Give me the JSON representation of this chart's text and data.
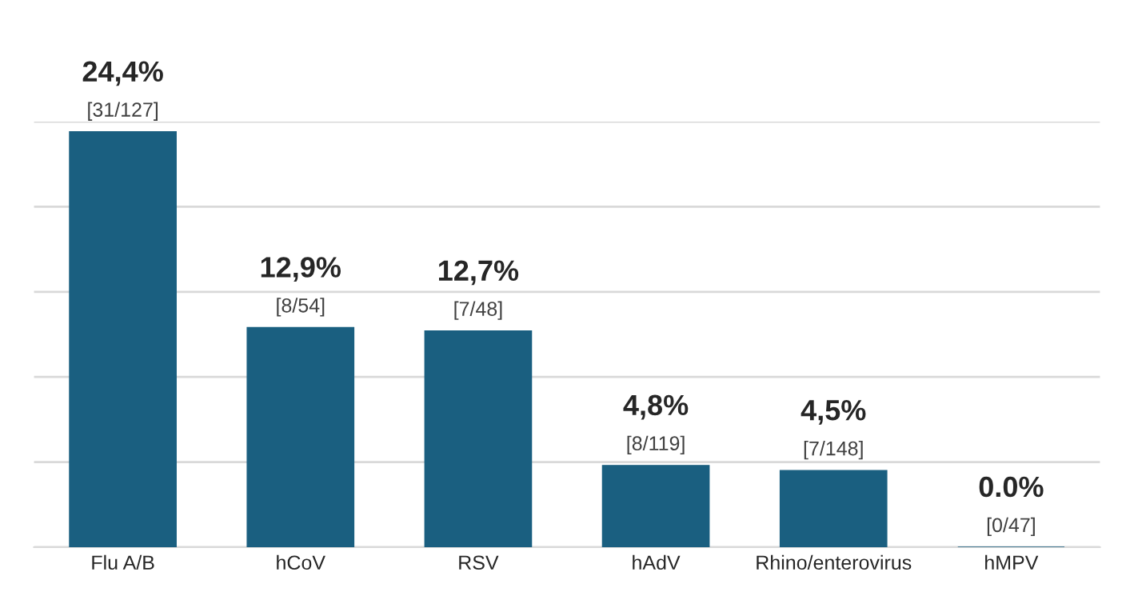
{
  "chart_data": {
    "type": "bar",
    "categories": [
      "Flu A/B",
      "hCoV",
      "RSV",
      "hAdV",
      "Rhino/enterovirus",
      "hMPV"
    ],
    "values": [
      24.4,
      12.9,
      12.7,
      4.8,
      4.5,
      0.0
    ],
    "color": "#1a5f80",
    "value_labels": [
      "24,4%",
      "12,9%",
      "12,7%",
      "4,8%",
      "4,5%",
      "0.0%"
    ],
    "annotations": [
      {
        "text": "[31/127]",
        "x": "Flu A/B",
        "y": 24.4
      },
      {
        "text": "[8/54]",
        "x": "hCoV",
        "y": 12.9
      },
      {
        "text": "[7/48]",
        "x": "RSV",
        "y": 12.7
      },
      {
        "text": "[8/119]",
        "x": "hAdV",
        "y": 4.8
      },
      {
        "text": "[7/148]",
        "x": "Rhino/enterovirus",
        "y": 4.5
      },
      {
        "text": "[0/47]",
        "x": "hMPV",
        "y": 0.0
      }
    ],
    "ylim": [
      0,
      25
    ],
    "yticks": [
      {
        "value": 0,
        "label": null
      },
      {
        "value": 5,
        "label": null
      },
      {
        "value": 10,
        "label": null
      },
      {
        "value": 15,
        "label": null
      },
      {
        "value": 20,
        "label": null
      },
      {
        "value": 25,
        "label": null
      }
    ],
    "grid": "y",
    "tick_labels": "x"
  }
}
